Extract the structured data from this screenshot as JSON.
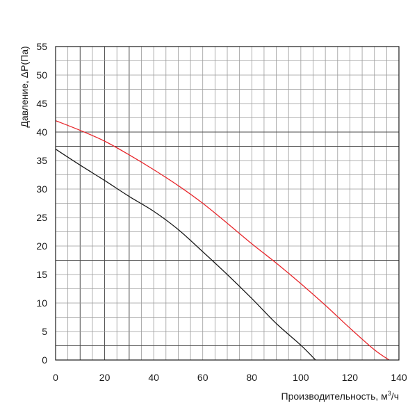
{
  "chart_data": {
    "type": "line",
    "xlabel": "Производительность, м",
    "xlabel_sup": "3",
    "xlabel_suffix": "/ч",
    "ylabel": "Давление, ΔP(Па)",
    "xlim": [
      0,
      140
    ],
    "ylim": [
      0,
      55
    ],
    "x_ticks": [
      0,
      20,
      40,
      60,
      80,
      100,
      120,
      140
    ],
    "y_ticks": [
      0,
      5,
      10,
      15,
      20,
      25,
      30,
      35,
      40,
      45,
      50,
      55
    ],
    "grid": true,
    "series": [
      {
        "color": "#e8262b",
        "x": [
          0,
          10,
          20,
          30,
          40,
          50,
          60,
          70,
          80,
          90,
          100,
          110,
          120,
          130,
          136
        ],
        "y": [
          42,
          40.3,
          38.4,
          36,
          33.4,
          30.6,
          27.5,
          24,
          20.4,
          17,
          13.4,
          9.6,
          5.6,
          1.8,
          0
        ]
      },
      {
        "color": "#1a1a1a",
        "x": [
          0,
          10,
          20,
          30,
          40,
          50,
          60,
          70,
          80,
          90,
          100,
          106
        ],
        "y": [
          37,
          34.2,
          31.5,
          28.7,
          26.1,
          22.9,
          19,
          15,
          10.8,
          6.4,
          2.6,
          0
        ]
      }
    ]
  }
}
